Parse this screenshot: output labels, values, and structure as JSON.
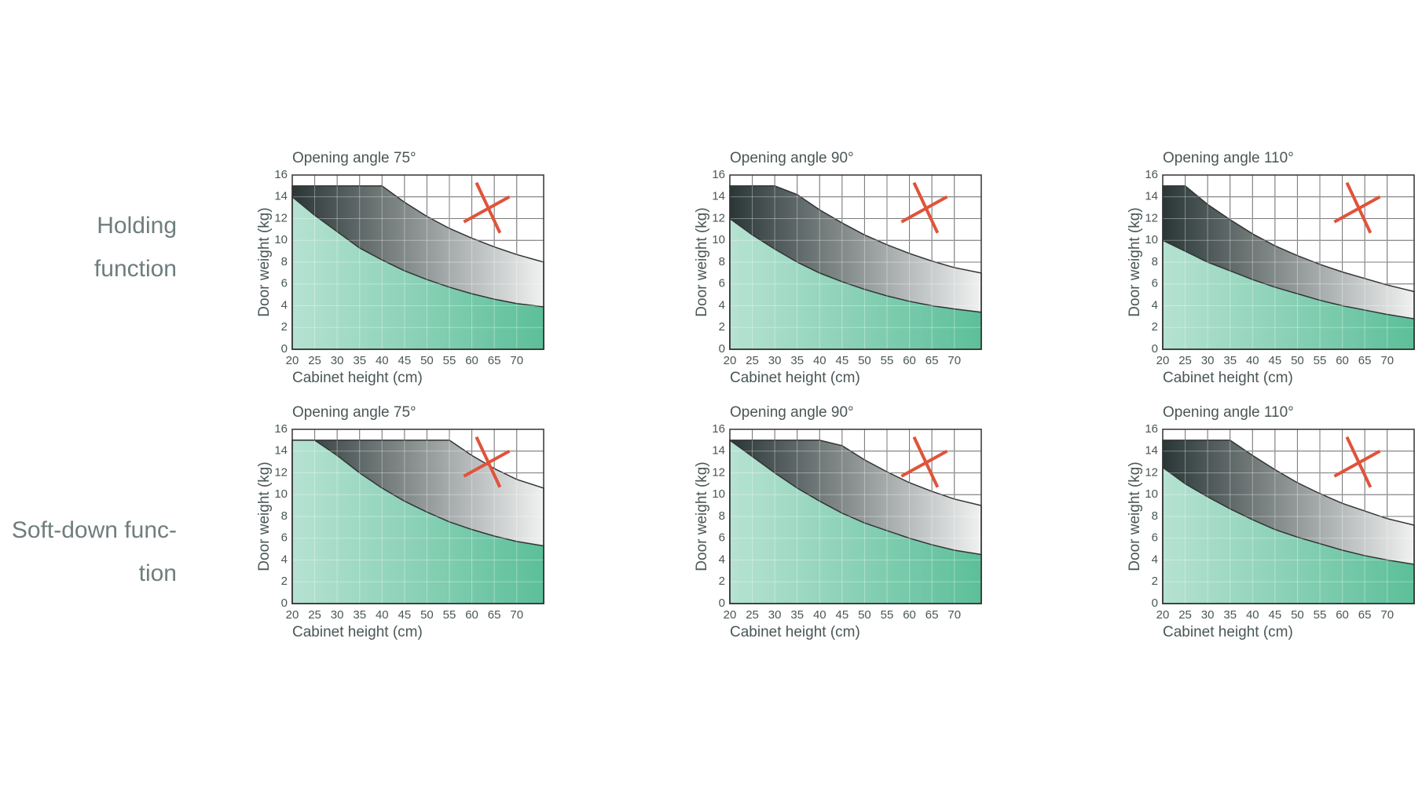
{
  "row_labels": [
    [
      "Holding",
      "function"
    ],
    [
      "Soft-down func-",
      "tion"
    ]
  ],
  "chart_data": [
    {
      "type": "area",
      "title": "Opening angle 75°",
      "xlabel": "Cabinet height (cm)",
      "ylabel": "Door weight (kg)",
      "x": [
        20,
        25,
        30,
        35,
        40,
        45,
        50,
        55,
        60,
        65,
        70,
        76
      ],
      "series": [
        {
          "color": "#5cbf9a",
          "values": [
            14,
            12.3,
            10.8,
            9.3,
            8.2,
            7.2,
            6.4,
            5.7,
            5.1,
            4.6,
            4.2,
            3.9
          ]
        },
        {
          "color": "#2a3636",
          "values": [
            15,
            15,
            15,
            15,
            15,
            13.5,
            12.2,
            11.1,
            10.2,
            9.4,
            8.7,
            8.0
          ]
        }
      ],
      "xlim": [
        20,
        76
      ],
      "ylim": [
        0,
        16
      ],
      "xticks": [
        20,
        25,
        30,
        35,
        40,
        45,
        50,
        55,
        60,
        65,
        70
      ],
      "yticks": [
        0,
        2,
        4,
        6,
        8,
        10,
        12,
        14,
        16
      ],
      "grid": true
    },
    {
      "type": "area",
      "title": "Opening angle 90°",
      "xlabel": "Cabinet height (cm)",
      "ylabel": "Door weight (kg)",
      "x": [
        20,
        25,
        30,
        35,
        40,
        45,
        50,
        55,
        60,
        65,
        70,
        76
      ],
      "series": [
        {
          "color": "#5cbf9a",
          "values": [
            12,
            10.5,
            9.2,
            8,
            7,
            6.2,
            5.5,
            4.9,
            4.4,
            4,
            3.7,
            3.4
          ]
        },
        {
          "color": "#2a3636",
          "values": [
            15,
            15,
            15,
            14.2,
            12.8,
            11.6,
            10.5,
            9.6,
            8.8,
            8.1,
            7.5,
            7.0
          ]
        }
      ],
      "xlim": [
        20,
        76
      ],
      "ylim": [
        0,
        16
      ],
      "xticks": [
        20,
        25,
        30,
        35,
        40,
        45,
        50,
        55,
        60,
        65,
        70
      ],
      "yticks": [
        0,
        2,
        4,
        6,
        8,
        10,
        12,
        14,
        16
      ],
      "grid": true
    },
    {
      "type": "area",
      "title": "Opening angle 110°",
      "xlabel": "Cabinet height (cm)",
      "ylabel": "Door weight (kg)",
      "x": [
        20,
        25,
        30,
        35,
        40,
        45,
        50,
        55,
        60,
        65,
        70,
        76
      ],
      "series": [
        {
          "color": "#5cbf9a",
          "values": [
            10,
            9,
            8,
            7.2,
            6.4,
            5.7,
            5.1,
            4.5,
            4,
            3.6,
            3.2,
            2.8
          ]
        },
        {
          "color": "#2a3636",
          "values": [
            15,
            15,
            13.3,
            11.9,
            10.6,
            9.5,
            8.6,
            7.8,
            7.1,
            6.5,
            5.9,
            5.3
          ]
        }
      ],
      "xlim": [
        20,
        76
      ],
      "ylim": [
        0,
        16
      ],
      "xticks": [
        20,
        25,
        30,
        35,
        40,
        45,
        50,
        55,
        60,
        65,
        70
      ],
      "yticks": [
        0,
        2,
        4,
        6,
        8,
        10,
        12,
        14,
        16
      ],
      "grid": true
    },
    {
      "type": "area",
      "title": "Opening angle 75°",
      "xlabel": "Cabinet height (cm)",
      "ylabel": "Door weight (kg)",
      "x": [
        20,
        25,
        30,
        35,
        40,
        45,
        50,
        55,
        60,
        65,
        70,
        76
      ],
      "series": [
        {
          "color": "#5cbf9a",
          "values": [
            15,
            15,
            13.6,
            12,
            10.6,
            9.4,
            8.4,
            7.5,
            6.8,
            6.2,
            5.7,
            5.3
          ]
        },
        {
          "color": "#2a3636",
          "values": [
            15,
            15,
            15,
            15,
            15,
            15,
            15,
            15,
            13.6,
            12.4,
            11.4,
            10.6
          ]
        }
      ],
      "xlim": [
        20,
        76
      ],
      "ylim": [
        0,
        16
      ],
      "xticks": [
        20,
        25,
        30,
        35,
        40,
        45,
        50,
        55,
        60,
        65,
        70
      ],
      "yticks": [
        0,
        2,
        4,
        6,
        8,
        10,
        12,
        14,
        16
      ],
      "grid": true
    },
    {
      "type": "area",
      "title": "Opening angle 90°",
      "xlabel": "Cabinet height (cm)",
      "ylabel": "Door weight (kg)",
      "x": [
        20,
        25,
        30,
        35,
        40,
        45,
        50,
        55,
        60,
        65,
        70,
        76
      ],
      "series": [
        {
          "color": "#5cbf9a",
          "values": [
            15,
            13.5,
            12,
            10.6,
            9.4,
            8.3,
            7.4,
            6.7,
            6,
            5.4,
            4.9,
            4.5
          ]
        },
        {
          "color": "#2a3636",
          "values": [
            15,
            15,
            15,
            15,
            15,
            14.5,
            13.2,
            12.1,
            11.1,
            10.3,
            9.6,
            9.0
          ]
        }
      ],
      "xlim": [
        20,
        76
      ],
      "ylim": [
        0,
        16
      ],
      "xticks": [
        20,
        25,
        30,
        35,
        40,
        45,
        50,
        55,
        60,
        65,
        70
      ],
      "yticks": [
        0,
        2,
        4,
        6,
        8,
        10,
        12,
        14,
        16
      ],
      "grid": true
    },
    {
      "type": "area",
      "title": "Opening angle 110°",
      "xlabel": "Cabinet height (cm)",
      "ylabel": "Door weight (kg)",
      "x": [
        20,
        25,
        30,
        35,
        40,
        45,
        50,
        55,
        60,
        65,
        70,
        76
      ],
      "series": [
        {
          "color": "#5cbf9a",
          "values": [
            12.5,
            11,
            9.8,
            8.7,
            7.7,
            6.8,
            6.1,
            5.5,
            4.9,
            4.4,
            4,
            3.6
          ]
        },
        {
          "color": "#2a3636",
          "values": [
            15,
            15,
            15,
            15,
            13.6,
            12.3,
            11.1,
            10.1,
            9.2,
            8.5,
            7.8,
            7.2
          ]
        }
      ],
      "xlim": [
        20,
        76
      ],
      "ylim": [
        0,
        16
      ],
      "xticks": [
        20,
        25,
        30,
        35,
        40,
        45,
        50,
        55,
        60,
        65,
        70
      ],
      "yticks": [
        0,
        2,
        4,
        6,
        8,
        10,
        12,
        14,
        16
      ],
      "grid": true
    }
  ]
}
